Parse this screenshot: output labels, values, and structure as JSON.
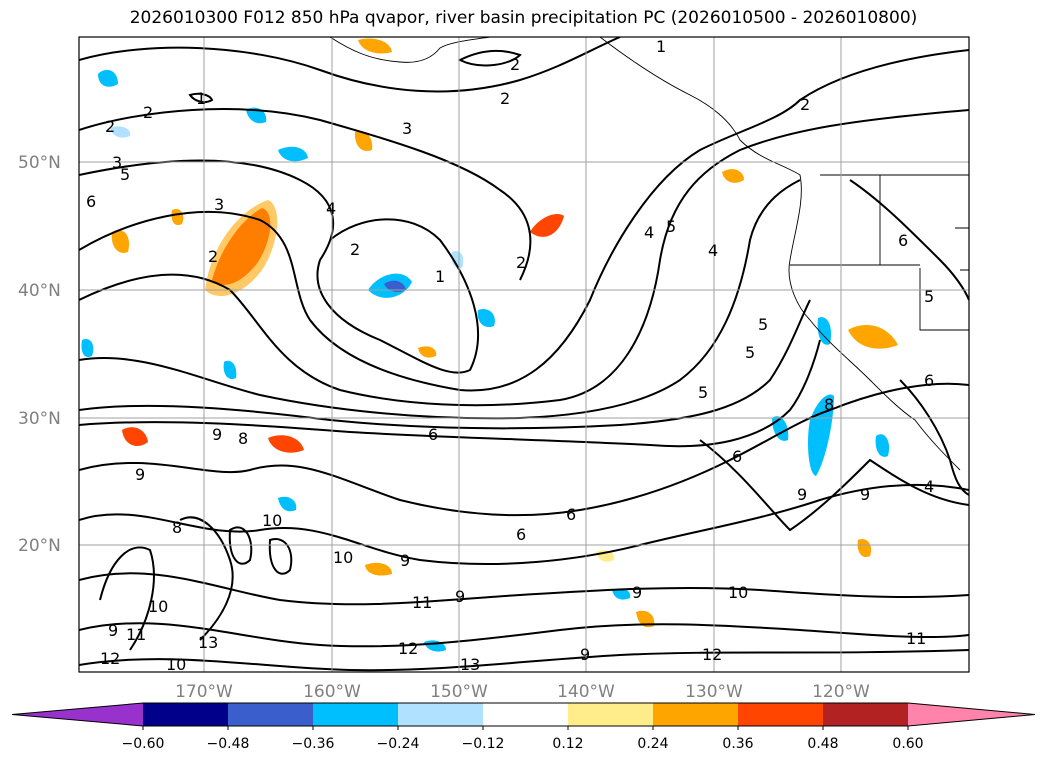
{
  "title": "2026010300 F012 850 hPa qvapor, river basin precipitation PC (2026010500 - 2026010800)",
  "lat_labels": [
    "50°N",
    "40°N",
    "30°N",
    "20°N"
  ],
  "lon_labels": [
    "170°W",
    "160°W",
    "150°W",
    "140°W",
    "130°W",
    "120°W"
  ],
  "colorbar": {
    "colors": [
      "#9932cc",
      "#00008b",
      "#3a5fcd",
      "#00bfff",
      "#b0e2ff",
      "#ffffff",
      "#ffec8b",
      "#ffa500",
      "#ff4500",
      "#b22222",
      "#ff83aa"
    ],
    "tick_labels": [
      "−0.60",
      "−0.48",
      "−0.36",
      "−0.24",
      "−0.12",
      "0.12",
      "0.24",
      "0.36",
      "0.48",
      "0.60"
    ]
  },
  "contour_labels": [
    "1",
    "2",
    "3",
    "4",
    "5",
    "6",
    "8",
    "9",
    "10",
    "11",
    "12",
    "13"
  ]
}
